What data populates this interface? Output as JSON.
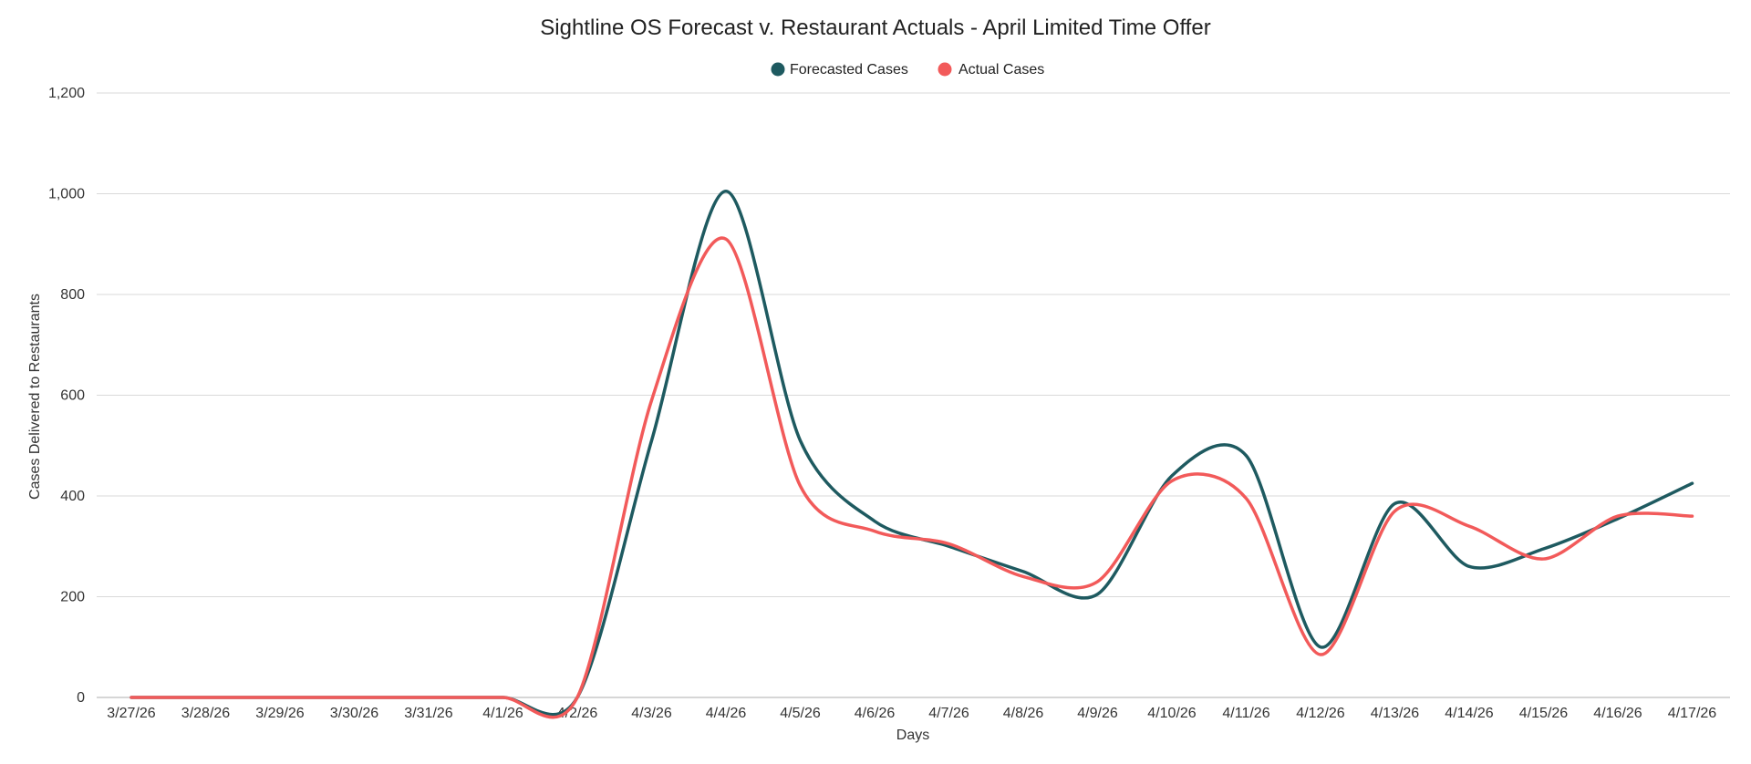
{
  "chart_data": {
    "type": "line",
    "title": "Sightline OS Forecast v. Restaurant Actuals - April Limited Time Offer",
    "xlabel": "Days",
    "ylabel": "Cases Delivered to Restaurants",
    "ylim": [
      0,
      1200
    ],
    "y_ticks": [
      "0",
      "200",
      "400",
      "600",
      "800",
      "1,000",
      "1,200"
    ],
    "y_tick_values": [
      0,
      200,
      400,
      600,
      800,
      1000,
      1200
    ],
    "grid": true,
    "legend_position": "top-center",
    "categories": [
      "3/27/26",
      "3/28/26",
      "3/29/26",
      "3/30/26",
      "3/31/26",
      "4/1/26",
      "4/2/26",
      "4/3/26",
      "4/4/26",
      "4/5/26",
      "4/6/26",
      "4/7/26",
      "4/8/26",
      "4/9/26",
      "4/10/26",
      "4/11/26",
      "4/12/26",
      "4/13/26",
      "4/14/26",
      "4/15/26",
      "4/16/26",
      "4/17/26"
    ],
    "series": [
      {
        "name": "Forecasted Cases",
        "color": "#1e5a60",
        "values": [
          0,
          0,
          0,
          0,
          0,
          0,
          0,
          510,
          1005,
          510,
          350,
          300,
          250,
          205,
          440,
          480,
          100,
          385,
          260,
          295,
          355,
          425
        ]
      },
      {
        "name": "Actual Cases",
        "color": "#f25a5a",
        "values": [
          0,
          0,
          0,
          0,
          0,
          0,
          0,
          590,
          910,
          420,
          330,
          305,
          240,
          230,
          430,
          395,
          85,
          370,
          340,
          275,
          360,
          360
        ]
      }
    ]
  }
}
